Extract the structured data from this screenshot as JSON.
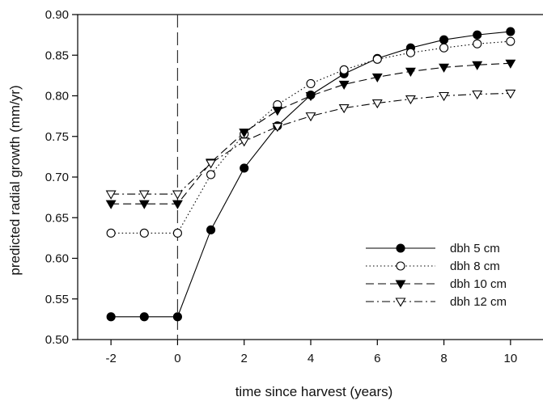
{
  "chart_data": {
    "type": "line",
    "xlabel": "time since harvest (years)",
    "ylabel": "predicted radial growth (mm/yr)",
    "xlim": [
      -3,
      11
    ],
    "ylim": [
      0.5,
      0.9
    ],
    "xticks": [
      -2,
      0,
      2,
      4,
      6,
      8,
      10
    ],
    "yticks": [
      "0.50",
      "0.55",
      "0.60",
      "0.65",
      "0.70",
      "0.75",
      "0.80",
      "0.85",
      "0.90"
    ],
    "grid": false,
    "legend_position": "bottom-right",
    "reference_line": {
      "x": 0,
      "style": "dashed"
    },
    "x": [
      -2,
      -1,
      0,
      1,
      2,
      3,
      4,
      5,
      6,
      7,
      8,
      9,
      10
    ],
    "series": [
      {
        "name": "dbh 5 cm",
        "marker": "filled-circle",
        "line": "solid",
        "values": [
          0.528,
          0.528,
          0.528,
          0.635,
          0.711,
          0.763,
          0.801,
          0.827,
          0.846,
          0.859,
          0.869,
          0.875,
          0.879
        ]
      },
      {
        "name": "dbh 8 cm",
        "marker": "open-circle",
        "line": "dotted",
        "values": [
          0.631,
          0.631,
          0.631,
          0.703,
          0.753,
          0.789,
          0.815,
          0.832,
          0.845,
          0.853,
          0.859,
          0.864,
          0.867
        ]
      },
      {
        "name": "dbh 10 cm",
        "marker": "filled-triangle-down",
        "line": "dashed",
        "values": [
          0.667,
          0.667,
          0.667,
          0.718,
          0.755,
          0.782,
          0.8,
          0.814,
          0.823,
          0.83,
          0.835,
          0.838,
          0.84
        ]
      },
      {
        "name": "dbh 12 cm",
        "marker": "open-triangle-down",
        "line": "dash-dot",
        "values": [
          0.679,
          0.679,
          0.679,
          0.717,
          0.744,
          0.762,
          0.775,
          0.785,
          0.791,
          0.796,
          0.8,
          0.802,
          0.803
        ]
      }
    ]
  }
}
